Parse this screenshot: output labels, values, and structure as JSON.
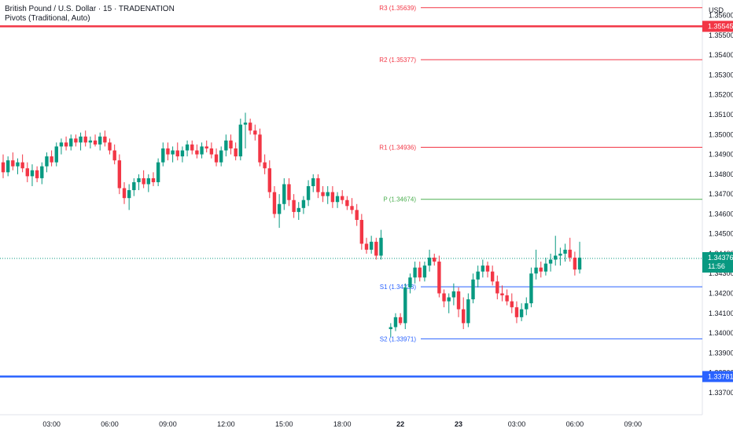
{
  "header": {
    "title": "British Pound / U.S. Dollar · 15 · TRADENATION",
    "indicator": "Pivots (Traditional, Auto)"
  },
  "colors": {
    "up": "#089981",
    "down": "#f23645",
    "resistance": "#f23645",
    "pivot": "#4caf50",
    "support": "#2962ff",
    "axis_text": "#131722"
  },
  "chart_data": {
    "type": "candlestick",
    "currency": "USD",
    "y_ticks": [
      "1.35600",
      "1.35500",
      "1.35400",
      "1.35300",
      "1.35200",
      "1.35100",
      "1.35000",
      "1.34900",
      "1.34800",
      "1.34700",
      "1.34600",
      "1.34500",
      "1.34400",
      "1.34300",
      "1.34200",
      "1.34100",
      "1.34000",
      "1.33900",
      "1.33800",
      "1.33700"
    ],
    "ylim": [
      1.3366,
      1.3565
    ],
    "x_ticks": [
      {
        "label": "03:00",
        "bar": 10
      },
      {
        "label": "06:00",
        "bar": 22
      },
      {
        "label": "09:00",
        "bar": 34
      },
      {
        "label": "12:00",
        "bar": 46
      },
      {
        "label": "15:00",
        "bar": 58
      },
      {
        "label": "18:00",
        "bar": 70
      },
      {
        "label": "22",
        "bar": 82
      },
      {
        "label": "23",
        "bar": 94
      },
      {
        "label": "03:00",
        "bar": 106
      },
      {
        "label": "06:00",
        "bar": 118
      },
      {
        "label": "09:00",
        "bar": 130
      }
    ],
    "pivot_levels": [
      {
        "name": "R3",
        "value": 1.35639,
        "label": "R3 (1.35639)",
        "kind": "resistance"
      },
      {
        "name": "R2",
        "value": 1.35377,
        "label": "R2 (1.35377)",
        "kind": "resistance"
      },
      {
        "name": "R1",
        "value": 1.34936,
        "label": "R1 (1.34936)",
        "kind": "resistance"
      },
      {
        "name": "P",
        "value": 1.34674,
        "label": "P (1.34674)",
        "kind": "pivot"
      },
      {
        "name": "S1",
        "value": 1.34233,
        "label": "S1 (1.34233)",
        "kind": "support"
      },
      {
        "name": "S2",
        "value": 1.33971,
        "label": "S2 (1.33971)",
        "kind": "support"
      }
    ],
    "price_lines": [
      {
        "value": 1.35545,
        "label": "1.35545",
        "color": "#f23645"
      },
      {
        "value": 1.33781,
        "label": "1.33781",
        "color": "#2962ff"
      }
    ],
    "last_price": {
      "value": 1.34376,
      "label": "1.34376",
      "countdown": "11:56",
      "color": "#089981"
    },
    "candles": [
      {
        "bar": 0,
        "o": 1.3486,
        "h": 1.349,
        "l": 1.3478,
        "c": 1.3481
      },
      {
        "bar": 1,
        "o": 1.3481,
        "h": 1.3489,
        "l": 1.3479,
        "c": 1.3487
      },
      {
        "bar": 2,
        "o": 1.3487,
        "h": 1.3491,
        "l": 1.3482,
        "c": 1.3484
      },
      {
        "bar": 3,
        "o": 1.3484,
        "h": 1.3488,
        "l": 1.348,
        "c": 1.3486
      },
      {
        "bar": 4,
        "o": 1.3486,
        "h": 1.349,
        "l": 1.3481,
        "c": 1.3483
      },
      {
        "bar": 5,
        "o": 1.3483,
        "h": 1.3486,
        "l": 1.3476,
        "c": 1.3479
      },
      {
        "bar": 6,
        "o": 1.3479,
        "h": 1.3485,
        "l": 1.3474,
        "c": 1.3482
      },
      {
        "bar": 7,
        "o": 1.3482,
        "h": 1.3484,
        "l": 1.3476,
        "c": 1.3478
      },
      {
        "bar": 8,
        "o": 1.3478,
        "h": 1.3486,
        "l": 1.3475,
        "c": 1.3484
      },
      {
        "bar": 9,
        "o": 1.3484,
        "h": 1.3491,
        "l": 1.3481,
        "c": 1.3489
      },
      {
        "bar": 10,
        "o": 1.3489,
        "h": 1.3492,
        "l": 1.3484,
        "c": 1.3486
      },
      {
        "bar": 11,
        "o": 1.3486,
        "h": 1.3496,
        "l": 1.3484,
        "c": 1.3494
      },
      {
        "bar": 12,
        "o": 1.3494,
        "h": 1.3498,
        "l": 1.349,
        "c": 1.3496
      },
      {
        "bar": 13,
        "o": 1.3496,
        "h": 1.3499,
        "l": 1.3492,
        "c": 1.3494
      },
      {
        "bar": 14,
        "o": 1.3494,
        "h": 1.35,
        "l": 1.3492,
        "c": 1.3498
      },
      {
        "bar": 15,
        "o": 1.3498,
        "h": 1.35,
        "l": 1.3494,
        "c": 1.3496
      },
      {
        "bar": 16,
        "o": 1.3496,
        "h": 1.3501,
        "l": 1.3492,
        "c": 1.3499
      },
      {
        "bar": 17,
        "o": 1.3499,
        "h": 1.3502,
        "l": 1.3494,
        "c": 1.3496
      },
      {
        "bar": 18,
        "o": 1.3496,
        "h": 1.3499,
        "l": 1.3493,
        "c": 1.3497
      },
      {
        "bar": 19,
        "o": 1.3497,
        "h": 1.35,
        "l": 1.3494,
        "c": 1.3495
      },
      {
        "bar": 20,
        "o": 1.3495,
        "h": 1.3501,
        "l": 1.3492,
        "c": 1.3499
      },
      {
        "bar": 21,
        "o": 1.3499,
        "h": 1.3502,
        "l": 1.3494,
        "c": 1.3496
      },
      {
        "bar": 22,
        "o": 1.3496,
        "h": 1.3498,
        "l": 1.349,
        "c": 1.3492
      },
      {
        "bar": 23,
        "o": 1.3492,
        "h": 1.3495,
        "l": 1.3485,
        "c": 1.3487
      },
      {
        "bar": 24,
        "o": 1.3487,
        "h": 1.349,
        "l": 1.347,
        "c": 1.3473
      },
      {
        "bar": 25,
        "o": 1.3473,
        "h": 1.3476,
        "l": 1.3465,
        "c": 1.3468
      },
      {
        "bar": 26,
        "o": 1.3468,
        "h": 1.3475,
        "l": 1.3462,
        "c": 1.3472
      },
      {
        "bar": 27,
        "o": 1.3472,
        "h": 1.3478,
        "l": 1.3469,
        "c": 1.3476
      },
      {
        "bar": 28,
        "o": 1.3476,
        "h": 1.348,
        "l": 1.3472,
        "c": 1.3478
      },
      {
        "bar": 29,
        "o": 1.3478,
        "h": 1.3482,
        "l": 1.3473,
        "c": 1.3475
      },
      {
        "bar": 30,
        "o": 1.3475,
        "h": 1.348,
        "l": 1.3471,
        "c": 1.3478
      },
      {
        "bar": 31,
        "o": 1.3478,
        "h": 1.3481,
        "l": 1.3474,
        "c": 1.3476
      },
      {
        "bar": 32,
        "o": 1.3476,
        "h": 1.3488,
        "l": 1.3474,
        "c": 1.3486
      },
      {
        "bar": 33,
        "o": 1.3486,
        "h": 1.3496,
        "l": 1.3484,
        "c": 1.3493
      },
      {
        "bar": 34,
        "o": 1.3493,
        "h": 1.3496,
        "l": 1.3487,
        "c": 1.349
      },
      {
        "bar": 35,
        "o": 1.349,
        "h": 1.3494,
        "l": 1.3486,
        "c": 1.3492
      },
      {
        "bar": 36,
        "o": 1.3492,
        "h": 1.3496,
        "l": 1.3487,
        "c": 1.3489
      },
      {
        "bar": 37,
        "o": 1.3489,
        "h": 1.3494,
        "l": 1.3486,
        "c": 1.3492
      },
      {
        "bar": 38,
        "o": 1.3492,
        "h": 1.3497,
        "l": 1.3489,
        "c": 1.3495
      },
      {
        "bar": 39,
        "o": 1.3495,
        "h": 1.3497,
        "l": 1.349,
        "c": 1.3492
      },
      {
        "bar": 40,
        "o": 1.3492,
        "h": 1.3495,
        "l": 1.3488,
        "c": 1.349
      },
      {
        "bar": 41,
        "o": 1.349,
        "h": 1.3496,
        "l": 1.3488,
        "c": 1.3494
      },
      {
        "bar": 42,
        "o": 1.3494,
        "h": 1.3497,
        "l": 1.3491,
        "c": 1.3493
      },
      {
        "bar": 43,
        "o": 1.3493,
        "h": 1.3496,
        "l": 1.3488,
        "c": 1.349
      },
      {
        "bar": 44,
        "o": 1.349,
        "h": 1.3493,
        "l": 1.3484,
        "c": 1.3486
      },
      {
        "bar": 45,
        "o": 1.3486,
        "h": 1.3494,
        "l": 1.3484,
        "c": 1.3492
      },
      {
        "bar": 46,
        "o": 1.3492,
        "h": 1.35,
        "l": 1.3489,
        "c": 1.3497
      },
      {
        "bar": 47,
        "o": 1.3497,
        "h": 1.35,
        "l": 1.349,
        "c": 1.3493
      },
      {
        "bar": 48,
        "o": 1.3493,
        "h": 1.3496,
        "l": 1.3487,
        "c": 1.3489
      },
      {
        "bar": 49,
        "o": 1.3489,
        "h": 1.3508,
        "l": 1.3487,
        "c": 1.3505
      },
      {
        "bar": 50,
        "o": 1.3505,
        "h": 1.3511,
        "l": 1.3493,
        "c": 1.3506
      },
      {
        "bar": 51,
        "o": 1.3506,
        "h": 1.3508,
        "l": 1.35,
        "c": 1.3502
      },
      {
        "bar": 52,
        "o": 1.3502,
        "h": 1.3505,
        "l": 1.3497,
        "c": 1.35
      },
      {
        "bar": 53,
        "o": 1.35,
        "h": 1.3503,
        "l": 1.3484,
        "c": 1.3486
      },
      {
        "bar": 54,
        "o": 1.3486,
        "h": 1.349,
        "l": 1.348,
        "c": 1.3483
      },
      {
        "bar": 55,
        "o": 1.3483,
        "h": 1.3487,
        "l": 1.3468,
        "c": 1.3471
      },
      {
        "bar": 56,
        "o": 1.3471,
        "h": 1.3474,
        "l": 1.3458,
        "c": 1.346
      },
      {
        "bar": 57,
        "o": 1.346,
        "h": 1.347,
        "l": 1.3453,
        "c": 1.3465
      },
      {
        "bar": 58,
        "o": 1.3465,
        "h": 1.3478,
        "l": 1.3462,
        "c": 1.3475
      },
      {
        "bar": 59,
        "o": 1.3475,
        "h": 1.3478,
        "l": 1.3464,
        "c": 1.3467
      },
      {
        "bar": 60,
        "o": 1.3467,
        "h": 1.347,
        "l": 1.3458,
        "c": 1.3461
      },
      {
        "bar": 61,
        "o": 1.3461,
        "h": 1.3466,
        "l": 1.3457,
        "c": 1.3463
      },
      {
        "bar": 62,
        "o": 1.3463,
        "h": 1.3469,
        "l": 1.346,
        "c": 1.3467
      },
      {
        "bar": 63,
        "o": 1.3467,
        "h": 1.3477,
        "l": 1.3464,
        "c": 1.3474
      },
      {
        "bar": 64,
        "o": 1.3474,
        "h": 1.348,
        "l": 1.3471,
        "c": 1.3478
      },
      {
        "bar": 65,
        "o": 1.3478,
        "h": 1.348,
        "l": 1.3468,
        "c": 1.3471
      },
      {
        "bar": 66,
        "o": 1.3471,
        "h": 1.3474,
        "l": 1.3466,
        "c": 1.3469
      },
      {
        "bar": 67,
        "o": 1.3469,
        "h": 1.3474,
        "l": 1.3465,
        "c": 1.3471
      },
      {
        "bar": 68,
        "o": 1.3471,
        "h": 1.3474,
        "l": 1.3463,
        "c": 1.3466
      },
      {
        "bar": 69,
        "o": 1.3466,
        "h": 1.3471,
        "l": 1.3463,
        "c": 1.3469
      },
      {
        "bar": 70,
        "o": 1.3469,
        "h": 1.3472,
        "l": 1.3465,
        "c": 1.3467
      },
      {
        "bar": 71,
        "o": 1.3467,
        "h": 1.3469,
        "l": 1.3462,
        "c": 1.3464
      },
      {
        "bar": 72,
        "o": 1.3464,
        "h": 1.3468,
        "l": 1.346,
        "c": 1.3462
      },
      {
        "bar": 73,
        "o": 1.3462,
        "h": 1.3465,
        "l": 1.3454,
        "c": 1.3457
      },
      {
        "bar": 74,
        "o": 1.3457,
        "h": 1.346,
        "l": 1.3442,
        "c": 1.3445
      },
      {
        "bar": 75,
        "o": 1.3445,
        "h": 1.3448,
        "l": 1.344,
        "c": 1.3442
      },
      {
        "bar": 76,
        "o": 1.3442,
        "h": 1.3449,
        "l": 1.344,
        "c": 1.3446
      },
      {
        "bar": 77,
        "o": 1.3446,
        "h": 1.3448,
        "l": 1.3437,
        "c": 1.3439
      },
      {
        "bar": 78,
        "o": 1.3439,
        "h": 1.3452,
        "l": 1.3437,
        "c": 1.3448
      },
      {
        "bar": 80,
        "o": 1.3402,
        "h": 1.3405,
        "l": 1.3398,
        "c": 1.3403
      },
      {
        "bar": 81,
        "o": 1.3403,
        "h": 1.341,
        "l": 1.3401,
        "c": 1.3408
      },
      {
        "bar": 82,
        "o": 1.3408,
        "h": 1.341,
        "l": 1.3404,
        "c": 1.3405
      },
      {
        "bar": 83,
        "o": 1.3405,
        "h": 1.3425,
        "l": 1.3402,
        "c": 1.3423
      },
      {
        "bar": 84,
        "o": 1.3423,
        "h": 1.343,
        "l": 1.342,
        "c": 1.3428
      },
      {
        "bar": 85,
        "o": 1.3428,
        "h": 1.3436,
        "l": 1.3425,
        "c": 1.3433
      },
      {
        "bar": 86,
        "o": 1.3433,
        "h": 1.3436,
        "l": 1.3426,
        "c": 1.3428
      },
      {
        "bar": 87,
        "o": 1.3428,
        "h": 1.3436,
        "l": 1.3426,
        "c": 1.3434
      },
      {
        "bar": 88,
        "o": 1.3434,
        "h": 1.3442,
        "l": 1.3431,
        "c": 1.3438
      },
      {
        "bar": 89,
        "o": 1.3438,
        "h": 1.344,
        "l": 1.3434,
        "c": 1.3436
      },
      {
        "bar": 90,
        "o": 1.3436,
        "h": 1.3439,
        "l": 1.3418,
        "c": 1.342
      },
      {
        "bar": 91,
        "o": 1.342,
        "h": 1.3422,
        "l": 1.3413,
        "c": 1.3416
      },
      {
        "bar": 92,
        "o": 1.3416,
        "h": 1.342,
        "l": 1.341,
        "c": 1.3418
      },
      {
        "bar": 93,
        "o": 1.3418,
        "h": 1.3425,
        "l": 1.3414,
        "c": 1.3421
      },
      {
        "bar": 94,
        "o": 1.3421,
        "h": 1.3423,
        "l": 1.3408,
        "c": 1.3412
      },
      {
        "bar": 95,
        "o": 1.3412,
        "h": 1.3418,
        "l": 1.3402,
        "c": 1.3405
      },
      {
        "bar": 96,
        "o": 1.3405,
        "h": 1.342,
        "l": 1.3403,
        "c": 1.3417
      },
      {
        "bar": 97,
        "o": 1.3417,
        "h": 1.343,
        "l": 1.3415,
        "c": 1.3427
      },
      {
        "bar": 98,
        "o": 1.3427,
        "h": 1.3434,
        "l": 1.3423,
        "c": 1.3431
      },
      {
        "bar": 99,
        "o": 1.3431,
        "h": 1.3437,
        "l": 1.3428,
        "c": 1.3434
      },
      {
        "bar": 100,
        "o": 1.3434,
        "h": 1.3436,
        "l": 1.3428,
        "c": 1.3431
      },
      {
        "bar": 101,
        "o": 1.3431,
        "h": 1.3434,
        "l": 1.3424,
        "c": 1.3426
      },
      {
        "bar": 102,
        "o": 1.3426,
        "h": 1.3429,
        "l": 1.3417,
        "c": 1.342
      },
      {
        "bar": 103,
        "o": 1.342,
        "h": 1.3424,
        "l": 1.3416,
        "c": 1.3419
      },
      {
        "bar": 104,
        "o": 1.3419,
        "h": 1.3422,
        "l": 1.3414,
        "c": 1.3416
      },
      {
        "bar": 105,
        "o": 1.3416,
        "h": 1.342,
        "l": 1.341,
        "c": 1.3413
      },
      {
        "bar": 106,
        "o": 1.3413,
        "h": 1.3416,
        "l": 1.3405,
        "c": 1.3408
      },
      {
        "bar": 107,
        "o": 1.3408,
        "h": 1.3415,
        "l": 1.3406,
        "c": 1.3412
      },
      {
        "bar": 108,
        "o": 1.3412,
        "h": 1.3418,
        "l": 1.3409,
        "c": 1.3415
      },
      {
        "bar": 109,
        "o": 1.3415,
        "h": 1.3433,
        "l": 1.3413,
        "c": 1.343
      },
      {
        "bar": 110,
        "o": 1.343,
        "h": 1.3442,
        "l": 1.3427,
        "c": 1.3433
      },
      {
        "bar": 111,
        "o": 1.3433,
        "h": 1.3436,
        "l": 1.3428,
        "c": 1.3431
      },
      {
        "bar": 112,
        "o": 1.3431,
        "h": 1.3438,
        "l": 1.3429,
        "c": 1.3435
      },
      {
        "bar": 113,
        "o": 1.3435,
        "h": 1.344,
        "l": 1.3431,
        "c": 1.3437
      },
      {
        "bar": 114,
        "o": 1.3437,
        "h": 1.3449,
        "l": 1.3434,
        "c": 1.3439
      },
      {
        "bar": 115,
        "o": 1.3439,
        "h": 1.3443,
        "l": 1.3434,
        "c": 1.344
      },
      {
        "bar": 116,
        "o": 1.344,
        "h": 1.3445,
        "l": 1.3436,
        "c": 1.3442
      },
      {
        "bar": 117,
        "o": 1.3442,
        "h": 1.3448,
        "l": 1.3436,
        "c": 1.3438
      },
      {
        "bar": 118,
        "o": 1.3438,
        "h": 1.3441,
        "l": 1.3429,
        "c": 1.3432
      },
      {
        "bar": 119,
        "o": 1.3432,
        "h": 1.3446,
        "l": 1.343,
        "c": 1.3438
      }
    ]
  }
}
